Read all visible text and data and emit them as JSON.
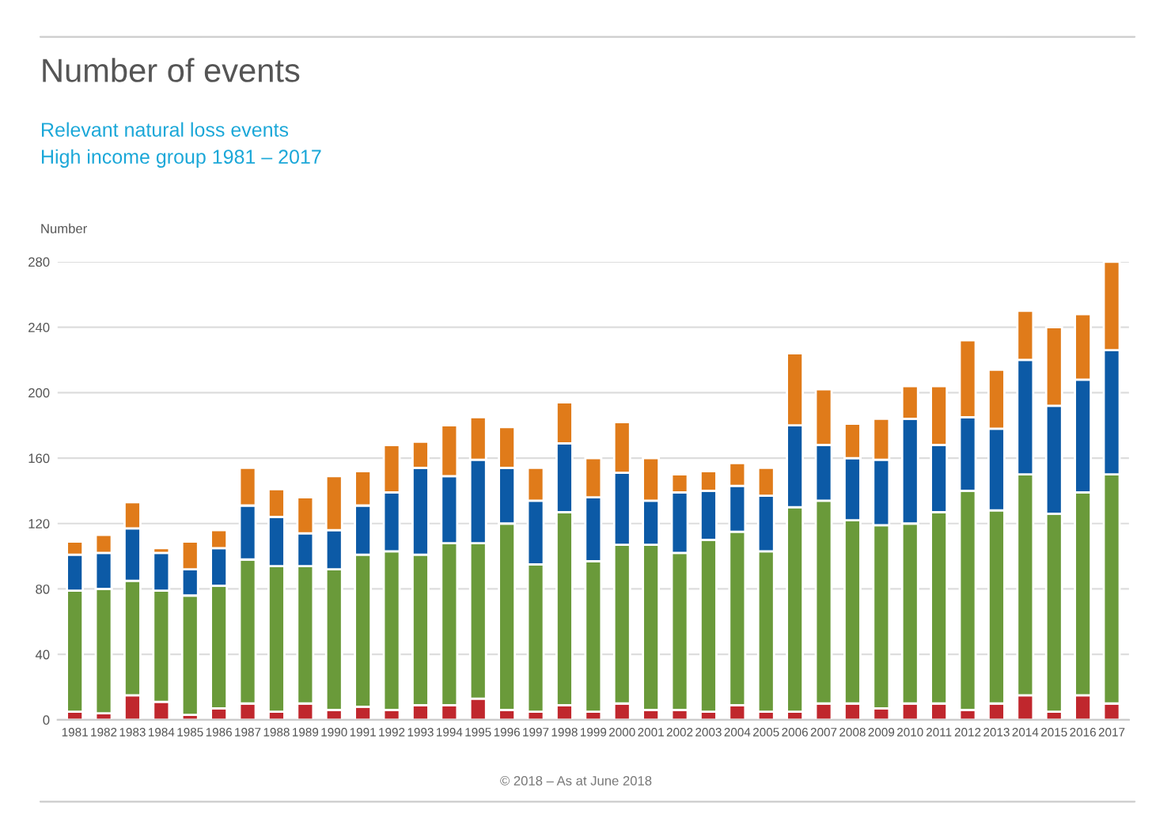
{
  "chart_data": {
    "type": "bar",
    "title": "Number of events",
    "subtitle": "Relevant natural loss events\nHigh income group 1981 – 2017",
    "ylabel": "Number",
    "stacked": true,
    "grid": "y",
    "categories": [
      "1981",
      "1982",
      "1983",
      "1984",
      "1985",
      "1986",
      "1987",
      "1988",
      "1989",
      "1990",
      "1991",
      "1992",
      "1993",
      "1994",
      "1995",
      "1996",
      "1997",
      "1998",
      "1999",
      "2000",
      "2001",
      "2002",
      "2003",
      "2004",
      "2005",
      "2006",
      "2007",
      "2008",
      "2009",
      "2010",
      "2011",
      "2012",
      "2013",
      "2014",
      "2015",
      "2016",
      "2017"
    ],
    "series": [
      {
        "color": "#c0272d",
        "values": [
          5,
          4,
          15,
          11,
          3,
          7,
          10,
          5,
          10,
          6,
          8,
          6,
          9,
          9,
          13,
          6,
          5,
          9,
          5,
          10,
          6,
          6,
          5,
          9,
          5,
          5,
          10,
          10,
          7,
          10,
          10,
          6,
          10,
          15,
          5,
          15,
          10
        ]
      },
      {
        "color": "#6a9a3a",
        "values": [
          74,
          76,
          70,
          68,
          73,
          75,
          88,
          89,
          84,
          86,
          93,
          97,
          92,
          99,
          95,
          114,
          90,
          118,
          92,
          97,
          101,
          96,
          105,
          106,
          98,
          125,
          124,
          112,
          112,
          110,
          117,
          134,
          118,
          135,
          121,
          124,
          140
        ]
      },
      {
        "color": "#0c5aa6",
        "values": [
          22,
          22,
          32,
          23,
          16,
          23,
          33,
          30,
          20,
          24,
          30,
          36,
          53,
          41,
          51,
          34,
          39,
          42,
          39,
          44,
          27,
          37,
          30,
          28,
          34,
          50,
          34,
          38,
          40,
          64,
          41,
          45,
          50,
          70,
          66,
          69,
          76
        ]
      },
      {
        "color": "#e07b1a",
        "values": [
          8,
          11,
          16,
          3,
          17,
          11,
          23,
          17,
          22,
          33,
          21,
          29,
          16,
          31,
          26,
          25,
          20,
          25,
          24,
          31,
          26,
          11,
          12,
          14,
          17,
          44,
          34,
          21,
          25,
          20,
          36,
          47,
          36,
          30,
          48,
          40,
          54
        ]
      }
    ],
    "ylim": [
      0,
      280
    ],
    "yticks": [
      0,
      40,
      80,
      120,
      160,
      200,
      240,
      280
    ],
    "annotations": [
      "© 2018 – As at June 2018"
    ]
  }
}
